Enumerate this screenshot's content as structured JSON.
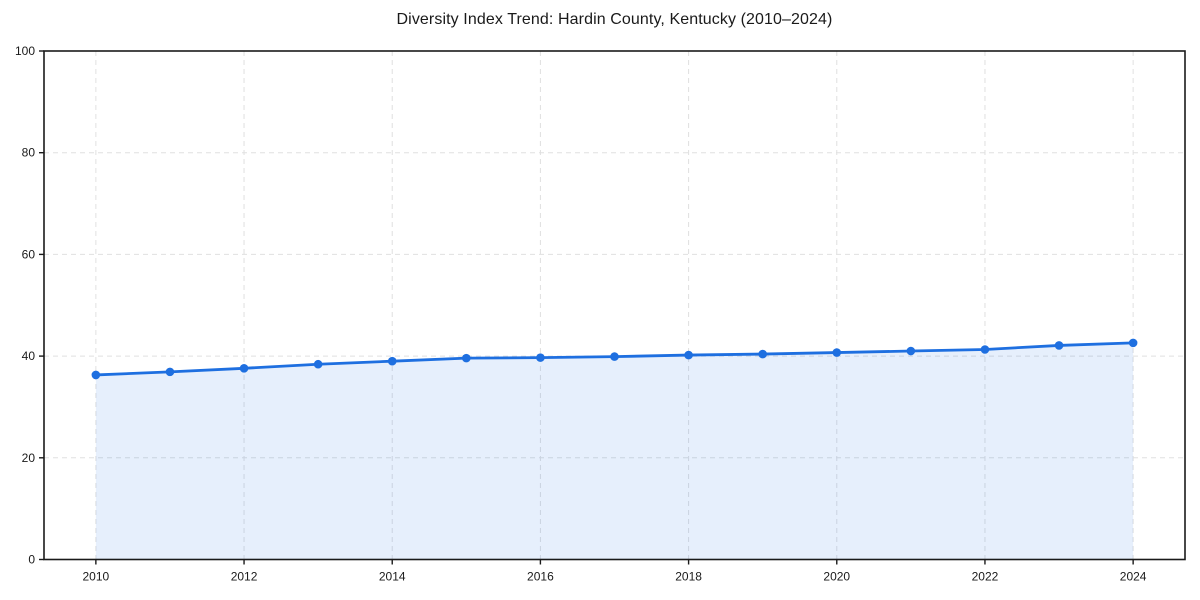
{
  "chart_data": {
    "type": "line",
    "title": "Diversity Index Trend: Hardin County, Kentucky (2010–2024)",
    "x": [
      2010,
      2011,
      2012,
      2013,
      2014,
      2015,
      2016,
      2017,
      2018,
      2019,
      2020,
      2021,
      2022,
      2023,
      2024
    ],
    "series": [
      {
        "name": "Diversity Index",
        "values": [
          36.3,
          36.9,
          37.6,
          38.4,
          39.0,
          39.6,
          39.7,
          39.9,
          40.2,
          40.4,
          40.7,
          41.0,
          41.3,
          42.1,
          42.6
        ]
      }
    ],
    "x_ticks": [
      2010,
      2012,
      2014,
      2016,
      2018,
      2020,
      2022,
      2024
    ],
    "y_ticks": [
      0,
      20,
      40,
      60,
      80,
      100
    ],
    "xlim": [
      2009.3,
      2024.7
    ],
    "ylim": [
      0,
      100
    ],
    "xlabel": "",
    "ylabel": "",
    "grid": "dashed-both-axes",
    "legend": "none",
    "area_fill": true,
    "marker": "circle",
    "colors": {
      "line": "#1e6fe0",
      "fill": "rgba(30,111,224,0.11)",
      "grid": "#e0e0e0",
      "spine": "#1a1a1a",
      "text": "#1a1a1a"
    }
  }
}
